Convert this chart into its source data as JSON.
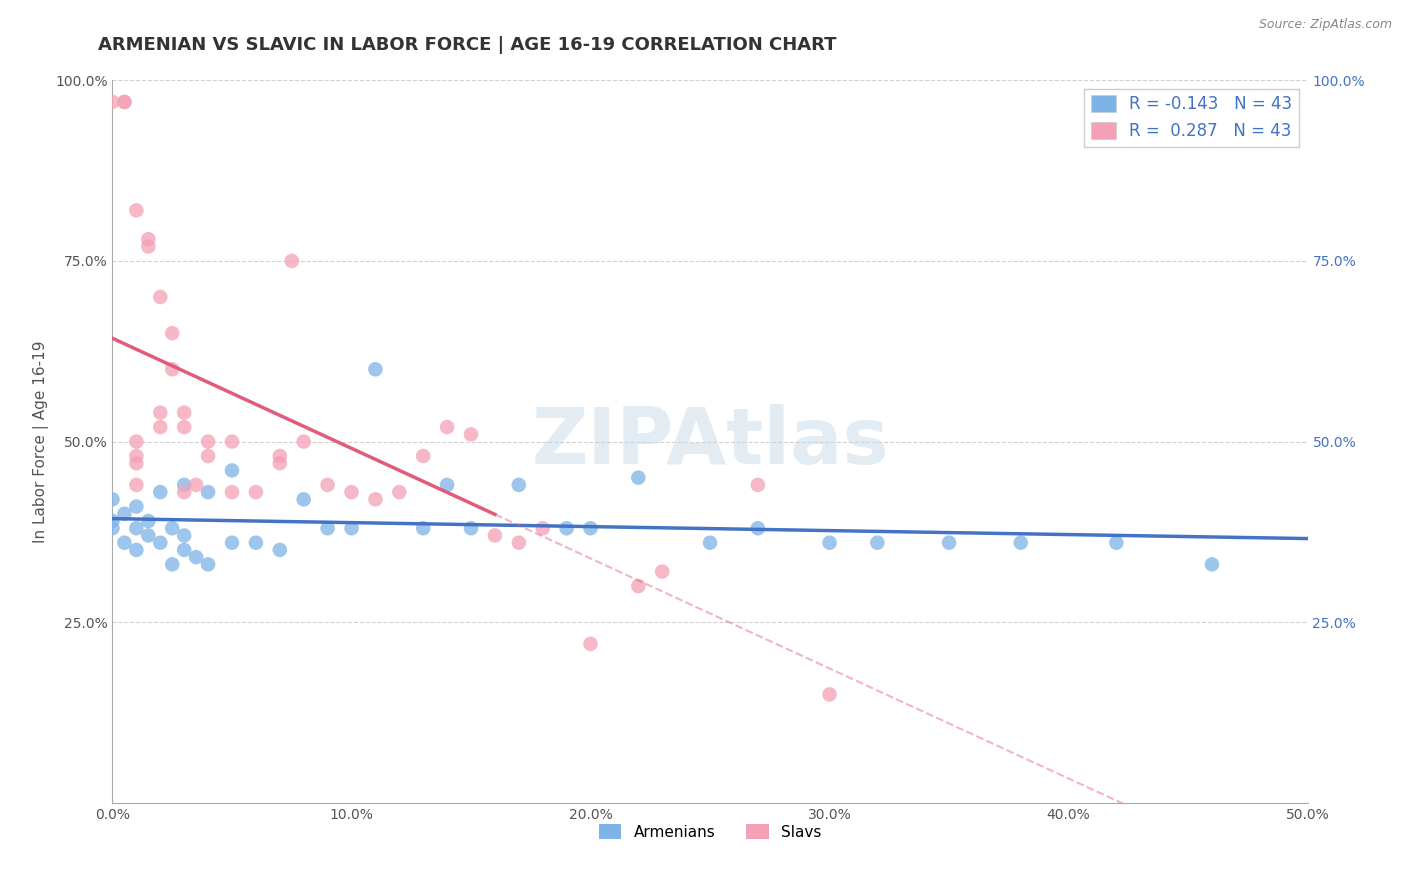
{
  "title": "ARMENIAN VS SLAVIC IN LABOR FORCE | AGE 16-19 CORRELATION CHART",
  "source": "Source: ZipAtlas.com",
  "xlabel": "",
  "ylabel": "In Labor Force | Age 16-19",
  "xlim": [
    0.0,
    0.5
  ],
  "ylim": [
    0.0,
    1.0
  ],
  "xtick_labels": [
    "0.0%",
    "10.0%",
    "20.0%",
    "30.0%",
    "40.0%",
    "50.0%"
  ],
  "xtick_vals": [
    0.0,
    0.1,
    0.2,
    0.3,
    0.4,
    0.5
  ],
  "ytick_labels": [
    "25.0%",
    "50.0%",
    "75.0%",
    "100.0%"
  ],
  "ytick_vals": [
    0.25,
    0.5,
    0.75,
    1.0
  ],
  "armenian_color": "#7eb3e8",
  "slavic_color": "#f4a0b5",
  "armenian_line_color": "#4472c4",
  "slavic_line_color": "#e05c7a",
  "legend_armenian_label": "Armenians",
  "legend_slavic_label": "Slavs",
  "R_armenian": -0.143,
  "R_slavic": 0.287,
  "N_armenian": 43,
  "N_slavic": 43,
  "armenian_x": [
    0.0,
    0.0,
    0.0,
    0.005,
    0.005,
    0.01,
    0.01,
    0.01,
    0.015,
    0.015,
    0.02,
    0.02,
    0.025,
    0.025,
    0.03,
    0.03,
    0.03,
    0.035,
    0.04,
    0.04,
    0.05,
    0.05,
    0.06,
    0.07,
    0.08,
    0.09,
    0.1,
    0.11,
    0.13,
    0.14,
    0.15,
    0.17,
    0.19,
    0.2,
    0.22,
    0.25,
    0.27,
    0.3,
    0.32,
    0.35,
    0.38,
    0.42,
    0.46
  ],
  "armenian_y": [
    0.38,
    0.39,
    0.42,
    0.36,
    0.4,
    0.38,
    0.35,
    0.41,
    0.37,
    0.39,
    0.36,
    0.43,
    0.38,
    0.33,
    0.35,
    0.37,
    0.44,
    0.34,
    0.33,
    0.43,
    0.36,
    0.46,
    0.36,
    0.35,
    0.42,
    0.38,
    0.38,
    0.6,
    0.38,
    0.44,
    0.38,
    0.44,
    0.38,
    0.38,
    0.45,
    0.36,
    0.38,
    0.36,
    0.36,
    0.36,
    0.36,
    0.36,
    0.33
  ],
  "slavic_x": [
    0.0,
    0.005,
    0.005,
    0.01,
    0.01,
    0.01,
    0.01,
    0.01,
    0.015,
    0.015,
    0.02,
    0.02,
    0.02,
    0.025,
    0.025,
    0.03,
    0.03,
    0.03,
    0.035,
    0.04,
    0.04,
    0.05,
    0.05,
    0.06,
    0.07,
    0.07,
    0.075,
    0.08,
    0.09,
    0.1,
    0.11,
    0.12,
    0.13,
    0.14,
    0.15,
    0.16,
    0.17,
    0.18,
    0.2,
    0.22,
    0.23,
    0.27,
    0.3
  ],
  "slavic_y": [
    0.97,
    0.97,
    0.97,
    0.82,
    0.47,
    0.48,
    0.5,
    0.44,
    0.77,
    0.78,
    0.7,
    0.52,
    0.54,
    0.65,
    0.6,
    0.52,
    0.54,
    0.43,
    0.44,
    0.48,
    0.5,
    0.5,
    0.43,
    0.43,
    0.47,
    0.48,
    0.75,
    0.5,
    0.44,
    0.43,
    0.42,
    0.43,
    0.48,
    0.52,
    0.51,
    0.37,
    0.36,
    0.38,
    0.22,
    0.3,
    0.32,
    0.44,
    0.15
  ],
  "background_color": "#ffffff",
  "grid_color": "#cccccc",
  "title_fontsize": 13,
  "label_fontsize": 11,
  "tick_fontsize": 10,
  "watermark_text": "ZIPAtlas",
  "watermark_color": "#c8d8e8",
  "watermark_alpha": 0.5,
  "right_tick_color": "#4472c4"
}
